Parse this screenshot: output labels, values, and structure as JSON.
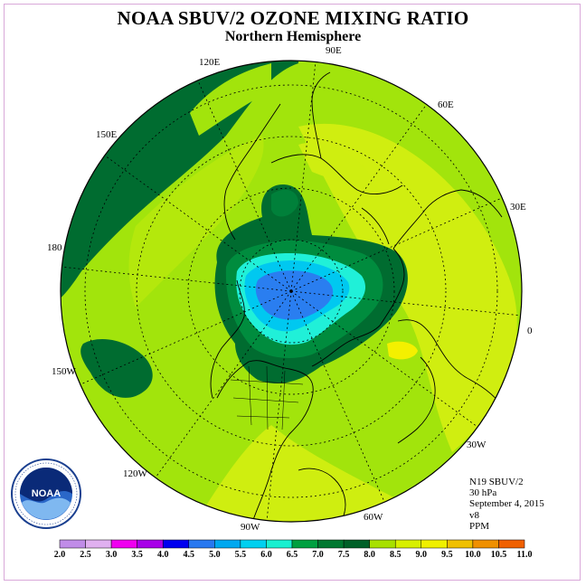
{
  "title": "NOAA SBUV/2 OZONE MIXING RATIO",
  "subtitle": "Northern Hemisphere",
  "longitude_labels": [
    "90E",
    "60E",
    "30E",
    "0",
    "30W",
    "60W",
    "90W",
    "120W",
    "150W",
    "180",
    "150E",
    "120E"
  ],
  "info": {
    "satellite": "N19 SBUV/2",
    "pressure": "30 hPa",
    "date": "September 4, 2015",
    "version": "v8",
    "units": "PPM"
  },
  "logo": {
    "text": "NOAA",
    "ring_text": "NATIONAL OCEANIC AND ATMOSPHERIC ADMINISTRATION · U.S. DEPARTMENT OF COMMERCE"
  },
  "colorbar": {
    "ticks": [
      "2.0",
      "2.5",
      "3.0",
      "3.5",
      "4.0",
      "4.5",
      "5.0",
      "5.5",
      "6.0",
      "6.5",
      "7.0",
      "7.5",
      "8.0",
      "8.5",
      "9.0",
      "9.5",
      "10.0",
      "10.5",
      "11.0"
    ],
    "colors": [
      "#c08ce8",
      "#e0b0f0",
      "#f000f0",
      "#a800e8",
      "#0000f0",
      "#2878f0",
      "#00a8f0",
      "#00d0f0",
      "#18f0d0",
      "#00a040",
      "#007830",
      "#006028",
      "#a8e000",
      "#d8f000",
      "#f0f000",
      "#f0c000",
      "#f09000",
      "#f06000",
      "#f00000",
      "#906040"
    ]
  },
  "colors": {
    "frame": "#d9a8d9",
    "level_7_0_to_7_5": "#006c30",
    "level_7_5_to_8_0": "#9ce000",
    "level_8_0_to_8_5": "#d8f000",
    "level_6_5_to_7_0": "#008a3c",
    "level_5_5_to_6_0": "#20f0d8",
    "level_5_0_to_5_5": "#00c8f0",
    "level_4_0_to_4_5": "#2a7ef0"
  }
}
